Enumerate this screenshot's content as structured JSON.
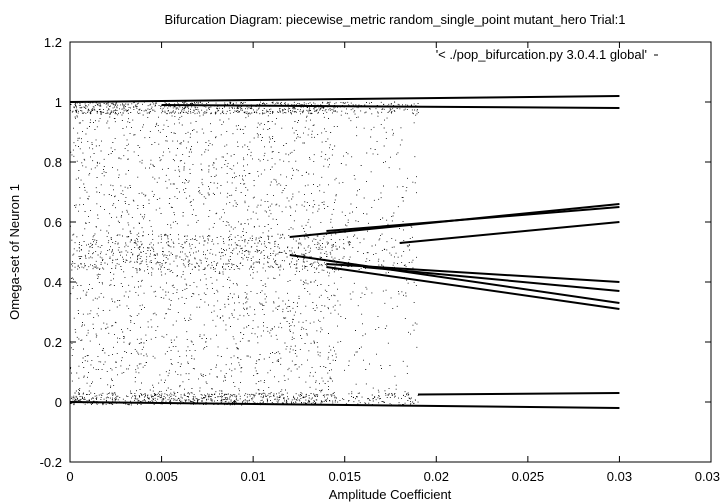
{
  "chart_data": {
    "type": "scatter",
    "title": "Bifurcation Diagram: piecewise_metric random_single_point mutant_hero Trial:1",
    "xlabel": "Amplitude Coefficient",
    "ylabel": "Omega-set of Neuron 1",
    "xlim": [
      0,
      0.035
    ],
    "ylim": [
      -0.2,
      1.2
    ],
    "x_ticks": [
      0,
      0.005,
      0.01,
      0.015,
      0.02,
      0.025,
      0.03,
      0.035
    ],
    "x_tick_labels": [
      "0",
      "0.005",
      "0.01",
      "0.015",
      "0.02",
      "0.025",
      "0.03",
      "0.035"
    ],
    "y_ticks": [
      -0.2,
      0,
      0.2,
      0.4,
      0.6,
      0.8,
      1,
      1.2
    ],
    "y_tick_labels": [
      "-0.2",
      "0",
      "0.2",
      "0.4",
      "0.6",
      "0.8",
      "1",
      "1.2"
    ],
    "grid": false,
    "legend_position": "top-right",
    "series": [
      {
        "name": "'< ./pop_bifurcation.py 3.0.4.1 global'",
        "color": "#000000",
        "marker": "dot",
        "x_range": [
          0,
          0.03
        ],
        "chaotic_region": {
          "x": [
            0,
            0.019
          ],
          "y": [
            -0.01,
            1.0
          ]
        },
        "attractor_branches": [
          {
            "x": [
              0,
              0.03
            ],
            "y": [
              1.0,
              1.02
            ]
          },
          {
            "x": [
              0.005,
              0.03
            ],
            "y": [
              0.99,
              0.98
            ]
          },
          {
            "x": [
              0,
              0.03
            ],
            "y": [
              0.0,
              -0.02
            ]
          },
          {
            "x": [
              0.019,
              0.03
            ],
            "y": [
              0.025,
              0.03
            ]
          },
          {
            "x": [
              0.012,
              0.03
            ],
            "y": [
              0.55,
              0.66
            ]
          },
          {
            "x": [
              0.014,
              0.03
            ],
            "y": [
              0.57,
              0.65
            ]
          },
          {
            "x": [
              0.018,
              0.03
            ],
            "y": [
              0.53,
              0.6
            ]
          },
          {
            "x": [
              0.014,
              0.03
            ],
            "y": [
              0.46,
              0.4
            ]
          },
          {
            "x": [
              0.016,
              0.03
            ],
            "y": [
              0.45,
              0.37
            ]
          },
          {
            "x": [
              0.012,
              0.03
            ],
            "y": [
              0.49,
              0.33
            ]
          },
          {
            "x": [
              0.014,
              0.03
            ],
            "y": [
              0.45,
              0.31
            ]
          }
        ]
      }
    ]
  }
}
